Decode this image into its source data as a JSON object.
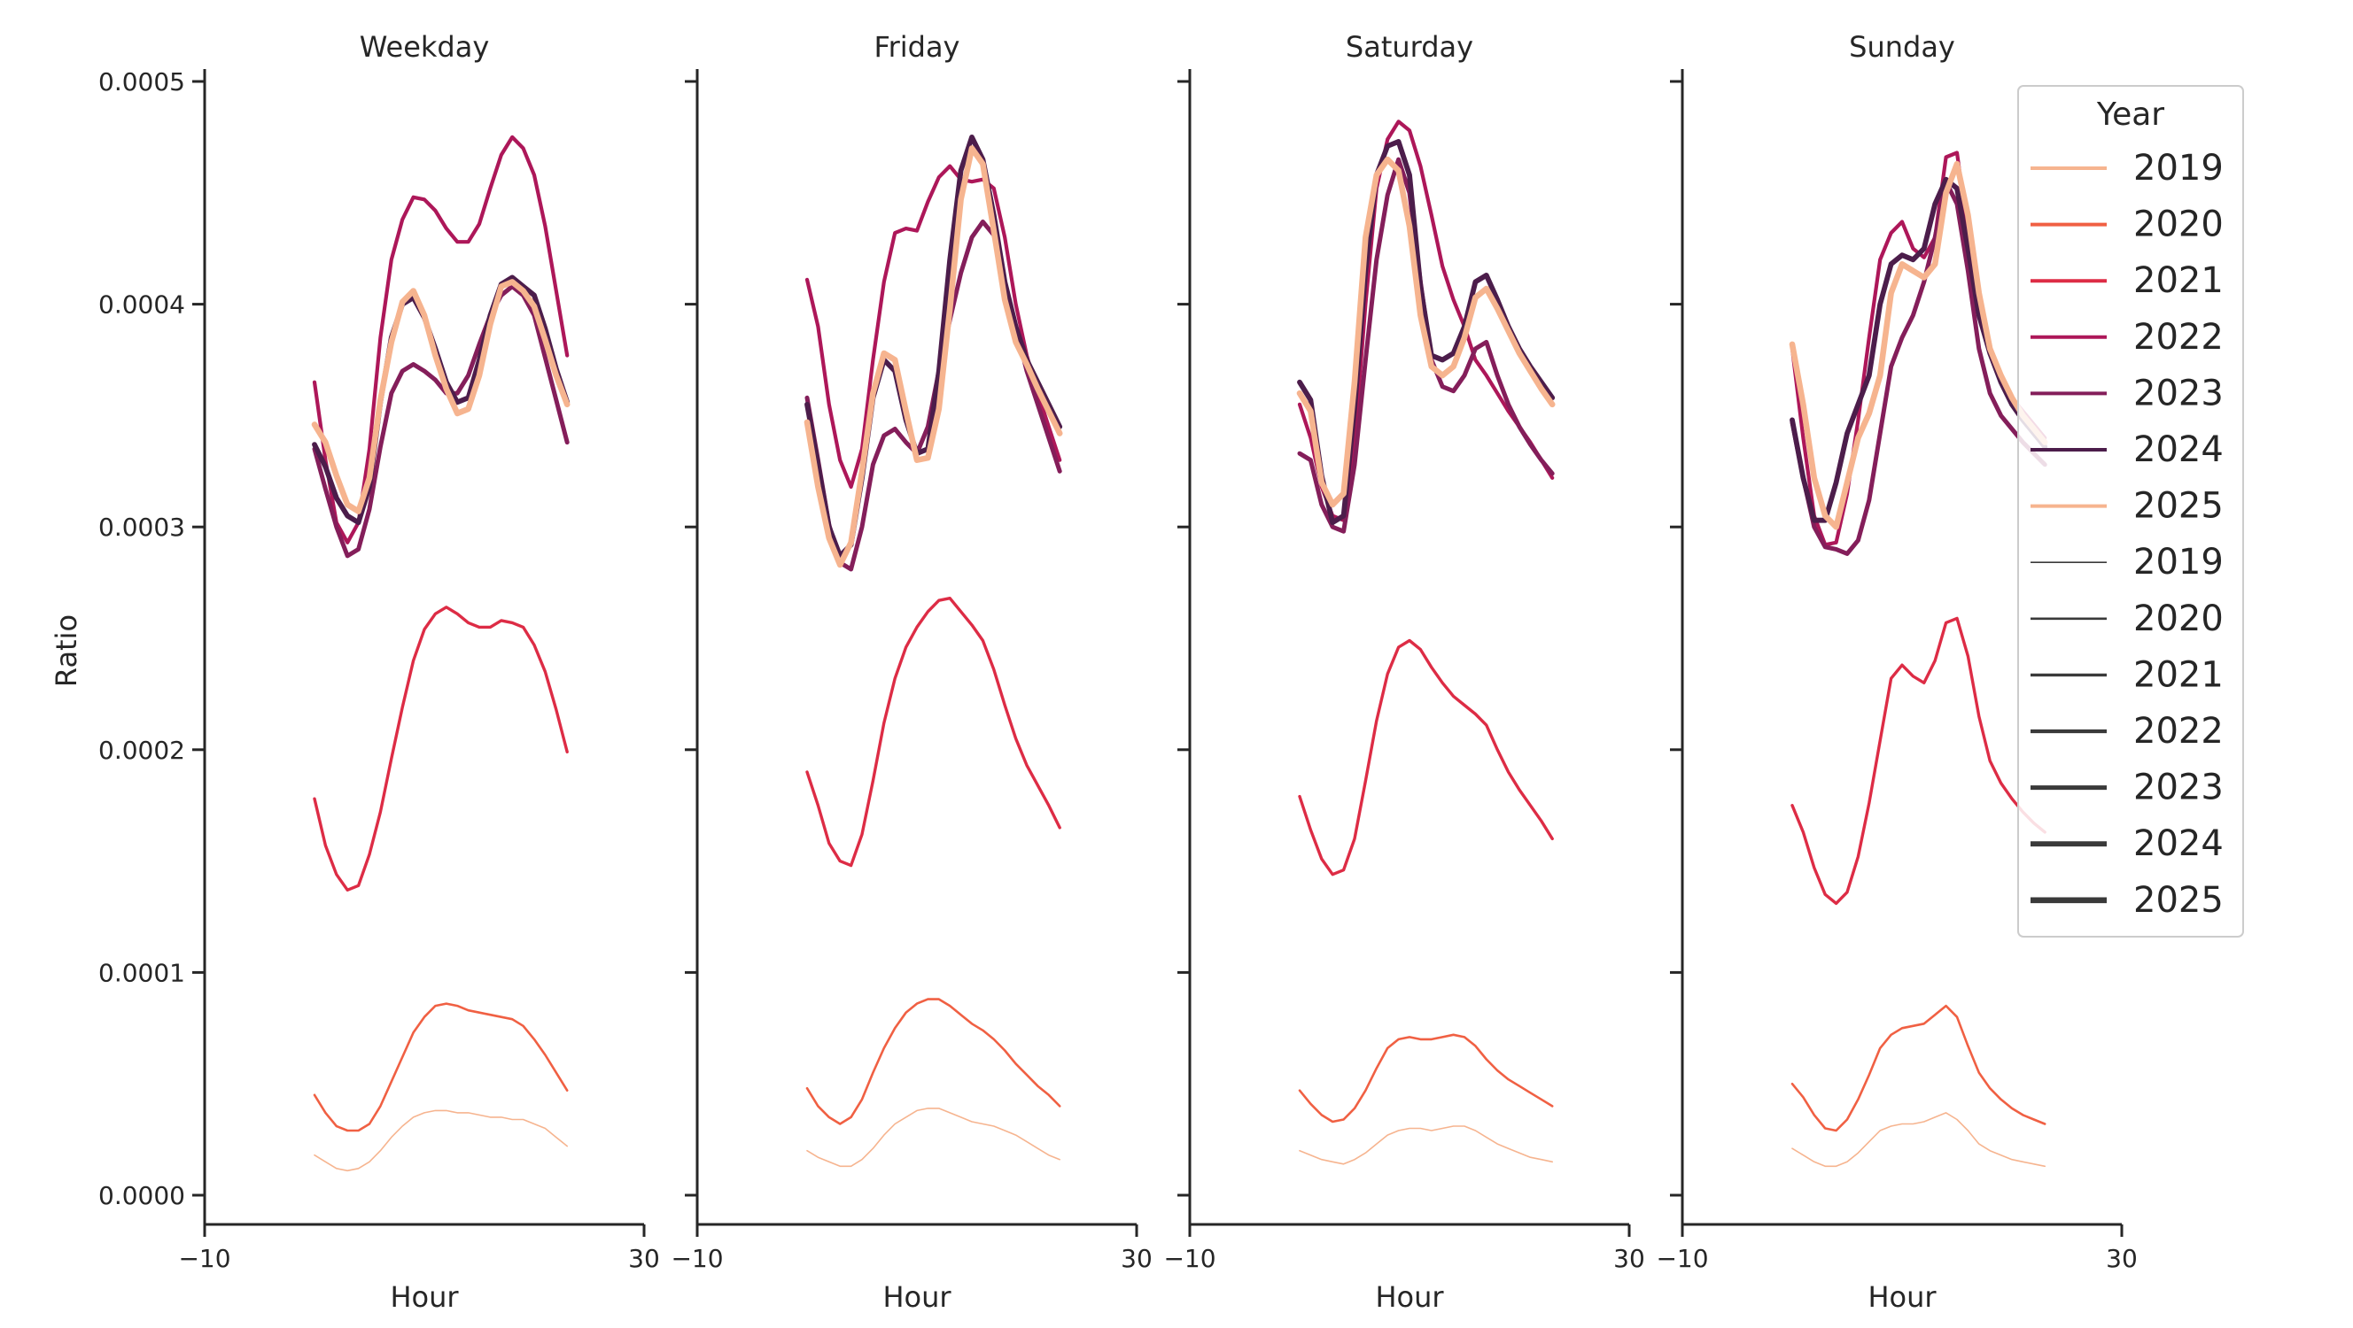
{
  "chart_data": {
    "type": "line",
    "ylabel": "Ratio",
    "xlabel": "Hour",
    "xlim": [
      -10,
      30
    ],
    "ylim": [
      0,
      0.0005
    ],
    "x_ticks": [
      -10,
      30
    ],
    "x_tick_labels": [
      "−10",
      "30"
    ],
    "y_ticks": [
      0,
      0.0001,
      0.0002,
      0.0003,
      0.0004,
      0.0005
    ],
    "y_tick_labels": [
      "0.0000",
      "0.0001",
      "0.0002",
      "0.0003",
      "0.0004",
      "0.0005"
    ],
    "x": [
      0,
      1,
      2,
      3,
      4,
      5,
      6,
      7,
      8,
      9,
      10,
      11,
      12,
      13,
      14,
      15,
      16,
      17,
      18,
      19,
      20,
      21,
      22,
      23
    ],
    "legend": {
      "title": "Year",
      "placement": "right",
      "hue_entries": [
        "2019",
        "2020",
        "2021",
        "2022",
        "2023",
        "2024",
        "2025"
      ],
      "size_entries": [
        "2019",
        "2020",
        "2021",
        "2022",
        "2023",
        "2024",
        "2025"
      ]
    },
    "year_colors": {
      "2019": "#f6b48f",
      "2020": "#f06043",
      "2021": "#dd2c45",
      "2022": "#ad1759",
      "2023": "#841e5a",
      "2024": "#4c1d4b",
      "2025": "#f6b48f"
    },
    "panels": [
      {
        "title": "Weekday",
        "series": [
          {
            "year": "2019",
            "values": [
              1.8e-05,
              1.5e-05,
              1.2e-05,
              1.1e-05,
              1.2e-05,
              1.5e-05,
              2e-05,
              2.6e-05,
              3.1e-05,
              3.5e-05,
              3.7e-05,
              3.8e-05,
              3.8e-05,
              3.7e-05,
              3.7e-05,
              3.6e-05,
              3.5e-05,
              3.5e-05,
              3.4e-05,
              3.4e-05,
              3.2e-05,
              3e-05,
              2.6e-05,
              2.2e-05
            ]
          },
          {
            "year": "2020",
            "values": [
              4.5e-05,
              3.7e-05,
              3.1e-05,
              2.9e-05,
              2.9e-05,
              3.2e-05,
              4e-05,
              5.1e-05,
              6.2e-05,
              7.3e-05,
              8e-05,
              8.5e-05,
              8.6e-05,
              8.5e-05,
              8.3e-05,
              8.2e-05,
              8.1e-05,
              8e-05,
              7.9e-05,
              7.6e-05,
              7e-05,
              6.3e-05,
              5.5e-05,
              4.7e-05
            ]
          },
          {
            "year": "2021",
            "values": [
              0.000178,
              0.000157,
              0.000144,
              0.000137,
              0.000139,
              0.000153,
              0.000172,
              0.000196,
              0.000219,
              0.00024,
              0.000254,
              0.000261,
              0.000264,
              0.000261,
              0.000257,
              0.000255,
              0.000255,
              0.000258,
              0.000257,
              0.000255,
              0.000247,
              0.000235,
              0.000218,
              0.000199
            ]
          },
          {
            "year": "2022",
            "values": [
              0.000365,
              0.00033,
              0.000302,
              0.000293,
              0.000302,
              0.000335,
              0.000385,
              0.00042,
              0.000438,
              0.000448,
              0.000447,
              0.000442,
              0.000434,
              0.000428,
              0.000428,
              0.000436,
              0.000452,
              0.000467,
              0.000475,
              0.00047,
              0.000458,
              0.000435,
              0.000406,
              0.000377
            ]
          },
          {
            "year": "2023",
            "values": [
              0.000335,
              0.000317,
              0.0003,
              0.000287,
              0.00029,
              0.000308,
              0.000336,
              0.00036,
              0.00037,
              0.000373,
              0.00037,
              0.000366,
              0.00036,
              0.00036,
              0.000368,
              0.000382,
              0.000395,
              0.000404,
              0.000408,
              0.000404,
              0.000395,
              0.000376,
              0.000357,
              0.000338
            ]
          },
          {
            "year": "2024",
            "values": [
              0.000337,
              0.000327,
              0.000313,
              0.000305,
              0.000302,
              0.000318,
              0.000356,
              0.000385,
              0.0004,
              0.000403,
              0.000394,
              0.00038,
              0.000365,
              0.000356,
              0.000358,
              0.000375,
              0.000395,
              0.000409,
              0.000412,
              0.000408,
              0.000404,
              0.000389,
              0.000371,
              0.000356
            ]
          },
          {
            "year": "2025",
            "values": [
              0.000346,
              0.000338,
              0.000323,
              0.00031,
              0.000307,
              0.000322,
              0.000357,
              0.000383,
              0.000401,
              0.000406,
              0.000395,
              0.000377,
              0.000362,
              0.000351,
              0.000353,
              0.000368,
              0.000391,
              0.000408,
              0.00041,
              0.000406,
              0.000399,
              0.000384,
              0.000368,
              0.000355
            ]
          }
        ]
      },
      {
        "title": "Friday",
        "series": [
          {
            "year": "2019",
            "values": [
              2e-05,
              1.7e-05,
              1.5e-05,
              1.3e-05,
              1.3e-05,
              1.6e-05,
              2.1e-05,
              2.7e-05,
              3.2e-05,
              3.5e-05,
              3.8e-05,
              3.9e-05,
              3.9e-05,
              3.7e-05,
              3.5e-05,
              3.3e-05,
              3.2e-05,
              3.1e-05,
              2.9e-05,
              2.7e-05,
              2.4e-05,
              2.1e-05,
              1.8e-05,
              1.6e-05
            ]
          },
          {
            "year": "2020",
            "values": [
              4.8e-05,
              4e-05,
              3.5e-05,
              3.2e-05,
              3.5e-05,
              4.3e-05,
              5.5e-05,
              6.6e-05,
              7.5e-05,
              8.2e-05,
              8.6e-05,
              8.8e-05,
              8.8e-05,
              8.5e-05,
              8.1e-05,
              7.7e-05,
              7.4e-05,
              7e-05,
              6.5e-05,
              5.9e-05,
              5.4e-05,
              4.9e-05,
              4.5e-05,
              4e-05
            ]
          },
          {
            "year": "2021",
            "values": [
              0.00019,
              0.000175,
              0.000158,
              0.00015,
              0.000148,
              0.000162,
              0.000186,
              0.000212,
              0.000232,
              0.000246,
              0.000255,
              0.000262,
              0.000267,
              0.000268,
              0.000262,
              0.000256,
              0.000249,
              0.000236,
              0.00022,
              0.000205,
              0.000193,
              0.000184,
              0.000175,
              0.000165
            ]
          },
          {
            "year": "2022",
            "values": [
              0.000411,
              0.00039,
              0.000355,
              0.00033,
              0.000318,
              0.000335,
              0.000375,
              0.00041,
              0.000432,
              0.000434,
              0.000433,
              0.000446,
              0.000457,
              0.000462,
              0.000456,
              0.000455,
              0.000456,
              0.000452,
              0.00043,
              0.0004,
              0.000377,
              0.00036,
              0.000345,
              0.00033
            ]
          },
          {
            "year": "2023",
            "values": [
              0.000358,
              0.00033,
              0.000301,
              0.000284,
              0.000281,
              0.0003,
              0.000328,
              0.000341,
              0.000344,
              0.000338,
              0.000333,
              0.000345,
              0.00037,
              0.000393,
              0.000414,
              0.00043,
              0.000437,
              0.000431,
              0.00041,
              0.00039,
              0.00037,
              0.000355,
              0.00034,
              0.000325
            ]
          },
          {
            "year": "2024",
            "values": [
              0.000355,
              0.000328,
              0.0003,
              0.000287,
              0.000292,
              0.000322,
              0.000358,
              0.000375,
              0.00037,
              0.000348,
              0.000333,
              0.000335,
              0.00037,
              0.00042,
              0.00046,
              0.000475,
              0.000465,
              0.00044,
              0.00041,
              0.00039,
              0.000375,
              0.000365,
              0.000355,
              0.000345
            ]
          },
          {
            "year": "2025",
            "values": [
              0.000347,
              0.000318,
              0.000295,
              0.000283,
              0.000293,
              0.000325,
              0.00036,
              0.000378,
              0.000375,
              0.000352,
              0.00033,
              0.000331,
              0.000353,
              0.000398,
              0.000447,
              0.00047,
              0.000463,
              0.000433,
              0.000402,
              0.000383,
              0.000373,
              0.000362,
              0.000352,
              0.000342
            ]
          }
        ]
      },
      {
        "title": "Saturday",
        "series": [
          {
            "year": "2019",
            "values": [
              2e-05,
              1.8e-05,
              1.6e-05,
              1.5e-05,
              1.4e-05,
              1.6e-05,
              1.9e-05,
              2.3e-05,
              2.7e-05,
              2.9e-05,
              3e-05,
              3e-05,
              2.9e-05,
              3e-05,
              3.1e-05,
              3.1e-05,
              2.9e-05,
              2.6e-05,
              2.3e-05,
              2.1e-05,
              1.9e-05,
              1.7e-05,
              1.6e-05,
              1.5e-05
            ]
          },
          {
            "year": "2020",
            "values": [
              4.7e-05,
              4.1e-05,
              3.6e-05,
              3.3e-05,
              3.4e-05,
              3.9e-05,
              4.7e-05,
              5.7e-05,
              6.6e-05,
              7e-05,
              7.1e-05,
              7e-05,
              7e-05,
              7.1e-05,
              7.2e-05,
              7.1e-05,
              6.7e-05,
              6.1e-05,
              5.6e-05,
              5.2e-05,
              4.9e-05,
              4.6e-05,
              4.3e-05,
              4e-05
            ]
          },
          {
            "year": "2021",
            "values": [
              0.000179,
              0.000164,
              0.000151,
              0.000144,
              0.000146,
              0.00016,
              0.000186,
              0.000213,
              0.000234,
              0.000246,
              0.000249,
              0.000245,
              0.000237,
              0.00023,
              0.000224,
              0.00022,
              0.000216,
              0.000211,
              0.0002,
              0.00019,
              0.000182,
              0.000175,
              0.000168,
              0.00016
            ]
          },
          {
            "year": "2022",
            "values": [
              0.000355,
              0.00034,
              0.000318,
              0.000305,
              0.000303,
              0.000338,
              0.0004,
              0.000452,
              0.000474,
              0.000482,
              0.000478,
              0.000462,
              0.00044,
              0.000417,
              0.000402,
              0.00039,
              0.000375,
              0.000368,
              0.00036,
              0.000352,
              0.000345,
              0.000338,
              0.00033,
              0.000322
            ]
          },
          {
            "year": "2023",
            "values": [
              0.000333,
              0.00033,
              0.00031,
              0.0003,
              0.000298,
              0.000328,
              0.000375,
              0.00042,
              0.000449,
              0.000465,
              0.00045,
              0.00041,
              0.000375,
              0.000363,
              0.000361,
              0.000368,
              0.00038,
              0.000383,
              0.000368,
              0.000355,
              0.000345,
              0.000337,
              0.00033,
              0.000324
            ]
          },
          {
            "year": "2024",
            "values": [
              0.000365,
              0.000357,
              0.000323,
              0.000302,
              0.000305,
              0.000353,
              0.000415,
              0.000458,
              0.000471,
              0.000473,
              0.000458,
              0.000408,
              0.000377,
              0.000375,
              0.000378,
              0.00039,
              0.00041,
              0.000413,
              0.000402,
              0.00039,
              0.00038,
              0.000372,
              0.000365,
              0.000358
            ]
          },
          {
            "year": "2025",
            "values": [
              0.00036,
              0.000352,
              0.00032,
              0.00031,
              0.000315,
              0.000365,
              0.00043,
              0.000458,
              0.000465,
              0.00046,
              0.000435,
              0.000395,
              0.000372,
              0.000368,
              0.000372,
              0.000385,
              0.000403,
              0.000407,
              0.000398,
              0.000388,
              0.000378,
              0.00037,
              0.000362,
              0.000355
            ]
          }
        ]
      },
      {
        "title": "Sunday",
        "series": [
          {
            "year": "2019",
            "values": [
              2.1e-05,
              1.8e-05,
              1.5e-05,
              1.3e-05,
              1.3e-05,
              1.5e-05,
              1.9e-05,
              2.4e-05,
              2.9e-05,
              3.1e-05,
              3.2e-05,
              3.2e-05,
              3.3e-05,
              3.5e-05,
              3.7e-05,
              3.4e-05,
              2.9e-05,
              2.3e-05,
              2e-05,
              1.8e-05,
              1.6e-05,
              1.5e-05,
              1.4e-05,
              1.3e-05
            ]
          },
          {
            "year": "2020",
            "values": [
              5e-05,
              4.4e-05,
              3.6e-05,
              3e-05,
              2.9e-05,
              3.4e-05,
              4.3e-05,
              5.4e-05,
              6.6e-05,
              7.2e-05,
              7.5e-05,
              7.6e-05,
              7.7e-05,
              8.1e-05,
              8.5e-05,
              8e-05,
              6.7e-05,
              5.5e-05,
              4.8e-05,
              4.3e-05,
              3.9e-05,
              3.6e-05,
              3.4e-05,
              3.2e-05
            ]
          },
          {
            "year": "2021",
            "values": [
              0.000175,
              0.000163,
              0.000147,
              0.000135,
              0.000131,
              0.000136,
              0.000152,
              0.000176,
              0.000204,
              0.000232,
              0.000238,
              0.000233,
              0.00023,
              0.00024,
              0.000257,
              0.000259,
              0.000242,
              0.000215,
              0.000195,
              0.000185,
              0.000178,
              0.000172,
              0.000167,
              0.000163
            ]
          },
          {
            "year": "2022",
            "values": [
              0.00038,
              0.00034,
              0.000305,
              0.000292,
              0.000293,
              0.000315,
              0.000348,
              0.000385,
              0.00042,
              0.000432,
              0.000437,
              0.000425,
              0.000421,
              0.00043,
              0.000466,
              0.000468,
              0.000432,
              0.0004,
              0.00038,
              0.000368,
              0.000358,
              0.000352,
              0.000346,
              0.00034
            ]
          },
          {
            "year": "2023",
            "values": [
              0.000347,
              0.000322,
              0.0003,
              0.000291,
              0.00029,
              0.000288,
              0.000294,
              0.000312,
              0.000342,
              0.000372,
              0.000385,
              0.000395,
              0.00041,
              0.00043,
              0.000455,
              0.000445,
              0.000415,
              0.00038,
              0.00036,
              0.00035,
              0.000344,
              0.000338,
              0.000333,
              0.000328
            ]
          },
          {
            "year": "2024",
            "values": [
              0.000348,
              0.000322,
              0.000303,
              0.000303,
              0.00032,
              0.000342,
              0.000355,
              0.000368,
              0.0004,
              0.000418,
              0.000422,
              0.00042,
              0.000425,
              0.000445,
              0.000456,
              0.000452,
              0.000425,
              0.000395,
              0.000378,
              0.000365,
              0.000355,
              0.000348,
              0.000342,
              0.000336
            ]
          },
          {
            "year": "2025",
            "values": [
              0.000382,
              0.000355,
              0.000322,
              0.000305,
              0.0003,
              0.00032,
              0.00034,
              0.000351,
              0.000368,
              0.000405,
              0.000418,
              0.000415,
              0.000412,
              0.000418,
              0.00045,
              0.000463,
              0.00044,
              0.000405,
              0.00038,
              0.000368,
              0.000358,
              0.00035,
              0.000344,
              0.000338
            ]
          }
        ]
      }
    ]
  }
}
